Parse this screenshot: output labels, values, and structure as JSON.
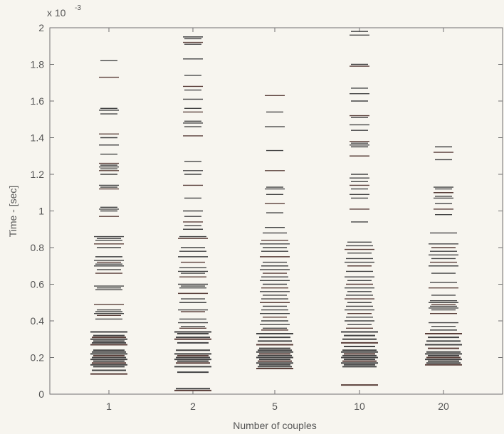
{
  "chart_data": {
    "type": "scatter",
    "xlabel": "Number of couples",
    "ylabel": "Time - [sec]",
    "y_exponent_label": "x 10",
    "y_exponent_power": "-3",
    "categories": [
      "1",
      "2",
      "5",
      "10",
      "20"
    ],
    "y_ticks": [
      "0",
      "0.2",
      "0.4",
      "0.6",
      "0.8",
      "1",
      "1.2",
      "1.4",
      "1.6",
      "1.8",
      "2"
    ],
    "ylim": [
      0,
      2
    ],
    "marker": "horizontal line",
    "grid": false,
    "series": [
      {
        "category": "1",
        "values": [
          0.11,
          0.13,
          0.15,
          0.16,
          0.17,
          0.18,
          0.19,
          0.2,
          0.21,
          0.22,
          0.23,
          0.24,
          0.27,
          0.28,
          0.29,
          0.3,
          0.31,
          0.32,
          0.34,
          0.41,
          0.43,
          0.44,
          0.45,
          0.46,
          0.49,
          0.57,
          0.58,
          0.59,
          0.66,
          0.68,
          0.7,
          0.71,
          0.72,
          0.73,
          0.75,
          0.8,
          0.82,
          0.84,
          0.85,
          0.86,
          0.97,
          1.0,
          1.01,
          1.02,
          1.12,
          1.13,
          1.14,
          1.2,
          1.22,
          1.23,
          1.24,
          1.25,
          1.26,
          1.31,
          1.36,
          1.4,
          1.42,
          1.53,
          1.55,
          1.56,
          1.73,
          1.82
        ]
      },
      {
        "category": "2",
        "values": [
          0.02,
          0.03,
          0.12,
          0.15,
          0.17,
          0.18,
          0.19,
          0.2,
          0.21,
          0.22,
          0.24,
          0.28,
          0.3,
          0.31,
          0.33,
          0.34,
          0.36,
          0.37,
          0.39,
          0.41,
          0.45,
          0.46,
          0.5,
          0.52,
          0.55,
          0.58,
          0.59,
          0.6,
          0.64,
          0.66,
          0.67,
          0.69,
          0.72,
          0.75,
          0.78,
          0.8,
          0.85,
          0.86,
          0.9,
          0.92,
          0.94,
          0.97,
          1.0,
          1.07,
          1.14,
          1.2,
          1.22,
          1.27,
          1.41,
          1.46,
          1.48,
          1.49,
          1.54,
          1.56,
          1.61,
          1.66,
          1.68,
          1.74,
          1.83,
          1.91,
          1.92,
          1.94,
          1.95
        ]
      },
      {
        "category": "5",
        "values": [
          0.14,
          0.15,
          0.16,
          0.17,
          0.18,
          0.19,
          0.2,
          0.21,
          0.22,
          0.23,
          0.24,
          0.25,
          0.27,
          0.29,
          0.31,
          0.33,
          0.35,
          0.36,
          0.38,
          0.4,
          0.42,
          0.44,
          0.46,
          0.48,
          0.5,
          0.52,
          0.54,
          0.56,
          0.58,
          0.6,
          0.62,
          0.64,
          0.66,
          0.68,
          0.7,
          0.72,
          0.75,
          0.78,
          0.8,
          0.82,
          0.84,
          0.88,
          0.91,
          0.99,
          1.04,
          1.09,
          1.12,
          1.13,
          1.22,
          1.33,
          1.46,
          1.54,
          1.63
        ]
      },
      {
        "category": "10",
        "values": [
          0.05,
          0.15,
          0.16,
          0.17,
          0.18,
          0.19,
          0.2,
          0.21,
          0.22,
          0.23,
          0.24,
          0.26,
          0.28,
          0.3,
          0.32,
          0.34,
          0.36,
          0.38,
          0.4,
          0.42,
          0.44,
          0.46,
          0.48,
          0.5,
          0.52,
          0.54,
          0.56,
          0.58,
          0.6,
          0.62,
          0.64,
          0.67,
          0.7,
          0.72,
          0.74,
          0.77,
          0.79,
          0.81,
          0.83,
          0.94,
          1.01,
          1.07,
          1.09,
          1.12,
          1.14,
          1.16,
          1.18,
          1.2,
          1.3,
          1.35,
          1.36,
          1.37,
          1.38,
          1.44,
          1.47,
          1.51,
          1.52,
          1.6,
          1.64,
          1.67,
          1.79,
          1.8,
          1.96,
          1.98
        ]
      },
      {
        "category": "20",
        "values": [
          0.16,
          0.17,
          0.18,
          0.19,
          0.2,
          0.21,
          0.22,
          0.23,
          0.25,
          0.27,
          0.29,
          0.31,
          0.33,
          0.35,
          0.37,
          0.39,
          0.44,
          0.46,
          0.47,
          0.48,
          0.49,
          0.5,
          0.51,
          0.54,
          0.58,
          0.61,
          0.66,
          0.7,
          0.72,
          0.74,
          0.76,
          0.78,
          0.8,
          0.82,
          0.88,
          0.98,
          1.01,
          1.04,
          1.07,
          1.08,
          1.1,
          1.12,
          1.13,
          1.28,
          1.32,
          1.35
        ]
      }
    ]
  }
}
